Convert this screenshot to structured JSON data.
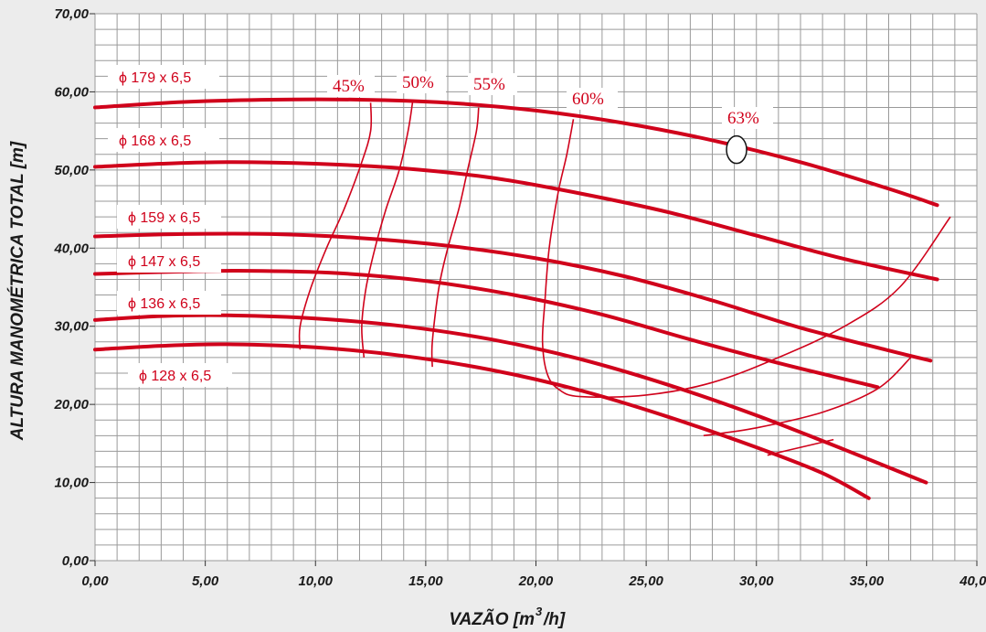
{
  "chart_data": {
    "type": "line",
    "title": "",
    "xlabel": "VAZÃO [m",
    "xlabel_sup": "3",
    "xlabel_end": "/h]",
    "ylabel": "ALTURA MANOMÉTRICA TOTAL [m]",
    "xlim": [
      0,
      40
    ],
    "ylim": [
      0,
      70
    ],
    "x_ticks": [
      "0,00",
      "5,00",
      "10,00",
      "15,00",
      "20,00",
      "25,00",
      "30,00",
      "35,00",
      "40,00"
    ],
    "y_ticks": [
      "0,00",
      "10,00",
      "20,00",
      "30,00",
      "40,00",
      "50,00",
      "60,00",
      "70,00"
    ],
    "grid": true,
    "colors": {
      "curve": "#d0021b",
      "grid": "#9a9a9a",
      "background": "#ececec",
      "plot": "#ffffff"
    },
    "series": [
      {
        "name": "ϕ 179 x 6,5",
        "points": [
          [
            0,
            58.0
          ],
          [
            4,
            58.7
          ],
          [
            8,
            59.0
          ],
          [
            12,
            59.0
          ],
          [
            16,
            58.6
          ],
          [
            20,
            57.6
          ],
          [
            24,
            56.0
          ],
          [
            28,
            53.8
          ],
          [
            32,
            51.0
          ],
          [
            36,
            47.6
          ],
          [
            38.2,
            45.5
          ]
        ]
      },
      {
        "name": "ϕ 168 x 6,5",
        "points": [
          [
            0,
            50.4
          ],
          [
            3,
            50.8
          ],
          [
            6,
            51.0
          ],
          [
            10,
            50.8
          ],
          [
            14,
            50.2
          ],
          [
            18,
            49.0
          ],
          [
            22,
            47.0
          ],
          [
            26,
            44.6
          ],
          [
            30,
            41.6
          ],
          [
            34,
            38.6
          ],
          [
            38.2,
            36.0
          ]
        ]
      },
      {
        "name": "ϕ 159 x 6,5",
        "points": [
          [
            0,
            41.5
          ],
          [
            4,
            41.8
          ],
          [
            8,
            41.8
          ],
          [
            12,
            41.3
          ],
          [
            16,
            40.3
          ],
          [
            20,
            38.7
          ],
          [
            24,
            36.4
          ],
          [
            28,
            33.3
          ],
          [
            32,
            29.8
          ],
          [
            36,
            26.9
          ],
          [
            37.9,
            25.6
          ]
        ]
      },
      {
        "name": "ϕ 147 x 6,5",
        "points": [
          [
            0,
            36.7
          ],
          [
            4,
            37.0
          ],
          [
            7,
            37.1
          ],
          [
            11,
            36.8
          ],
          [
            15,
            35.8
          ],
          [
            19,
            34.0
          ],
          [
            23,
            31.5
          ],
          [
            27,
            28.3
          ],
          [
            31,
            25.3
          ],
          [
            35.5,
            22.2
          ]
        ]
      },
      {
        "name": "ϕ 136 x 6,5",
        "points": [
          [
            0,
            30.8
          ],
          [
            3,
            31.3
          ],
          [
            6,
            31.4
          ],
          [
            10,
            31.0
          ],
          [
            14,
            30.0
          ],
          [
            18,
            28.3
          ],
          [
            22,
            25.8
          ],
          [
            26,
            22.5
          ],
          [
            30,
            18.6
          ],
          [
            34,
            14.2
          ],
          [
            37.7,
            10.0
          ]
        ]
      },
      {
        "name": "ϕ 128 x 6,5",
        "points": [
          [
            0,
            27.0
          ],
          [
            3,
            27.5
          ],
          [
            6,
            27.7
          ],
          [
            10,
            27.3
          ],
          [
            14,
            26.2
          ],
          [
            18,
            24.4
          ],
          [
            22,
            21.8
          ],
          [
            26,
            18.4
          ],
          [
            30,
            14.5
          ],
          [
            33,
            11.2
          ],
          [
            35.1,
            8.0
          ]
        ]
      }
    ],
    "efficiency_curves": [
      {
        "label": "45%",
        "points": [
          [
            9.3,
            27.0
          ],
          [
            9.3,
            30.0
          ],
          [
            9.8,
            35.0
          ],
          [
            10.5,
            40.0
          ],
          [
            11.3,
            45.0
          ],
          [
            12.1,
            51.0
          ],
          [
            12.5,
            55.0
          ],
          [
            12.5,
            58.6
          ]
        ]
      },
      {
        "label": "50%",
        "points": [
          [
            12.2,
            26.0
          ],
          [
            12.1,
            30.0
          ],
          [
            12.3,
            35.0
          ],
          [
            12.7,
            40.0
          ],
          [
            13.2,
            45.0
          ],
          [
            13.8,
            50.0
          ],
          [
            14.2,
            55.0
          ],
          [
            14.4,
            58.6
          ]
        ]
      },
      {
        "label": "55%",
        "points": [
          [
            15.3,
            24.8
          ],
          [
            15.3,
            28.0
          ],
          [
            15.6,
            35.0
          ],
          [
            16.0,
            40.0
          ],
          [
            16.5,
            45.0
          ],
          [
            16.9,
            50.0
          ],
          [
            17.3,
            55.0
          ],
          [
            17.4,
            58.0
          ]
        ]
      },
      {
        "label": "60%",
        "points": [
          [
            21.7,
            56.5
          ],
          [
            21.4,
            52.0
          ],
          [
            21.0,
            47.0
          ],
          [
            20.6,
            40.0
          ],
          [
            20.4,
            33.0
          ],
          [
            20.3,
            28.0
          ],
          [
            20.5,
            24.0
          ],
          [
            21.0,
            22.0
          ],
          [
            22.0,
            21.0
          ],
          [
            25.0,
            21.2
          ],
          [
            28.0,
            22.8
          ],
          [
            31.0,
            26.0
          ],
          [
            34.0,
            30.0
          ],
          [
            36.5,
            35.0
          ],
          [
            38.8,
            44.0
          ]
        ]
      },
      {
        "label": "",
        "points": [
          [
            27.6,
            16.0
          ],
          [
            30.0,
            17.0
          ],
          [
            33.0,
            19.0
          ],
          [
            35.5,
            22.0
          ],
          [
            37.0,
            26.0
          ]
        ]
      },
      {
        "label": "",
        "points": [
          [
            30.5,
            13.5
          ],
          [
            32.0,
            14.5
          ],
          [
            33.5,
            15.5
          ]
        ]
      }
    ],
    "point_63": {
      "label": "63%",
      "x": 29.1,
      "y": 52.6
    }
  }
}
